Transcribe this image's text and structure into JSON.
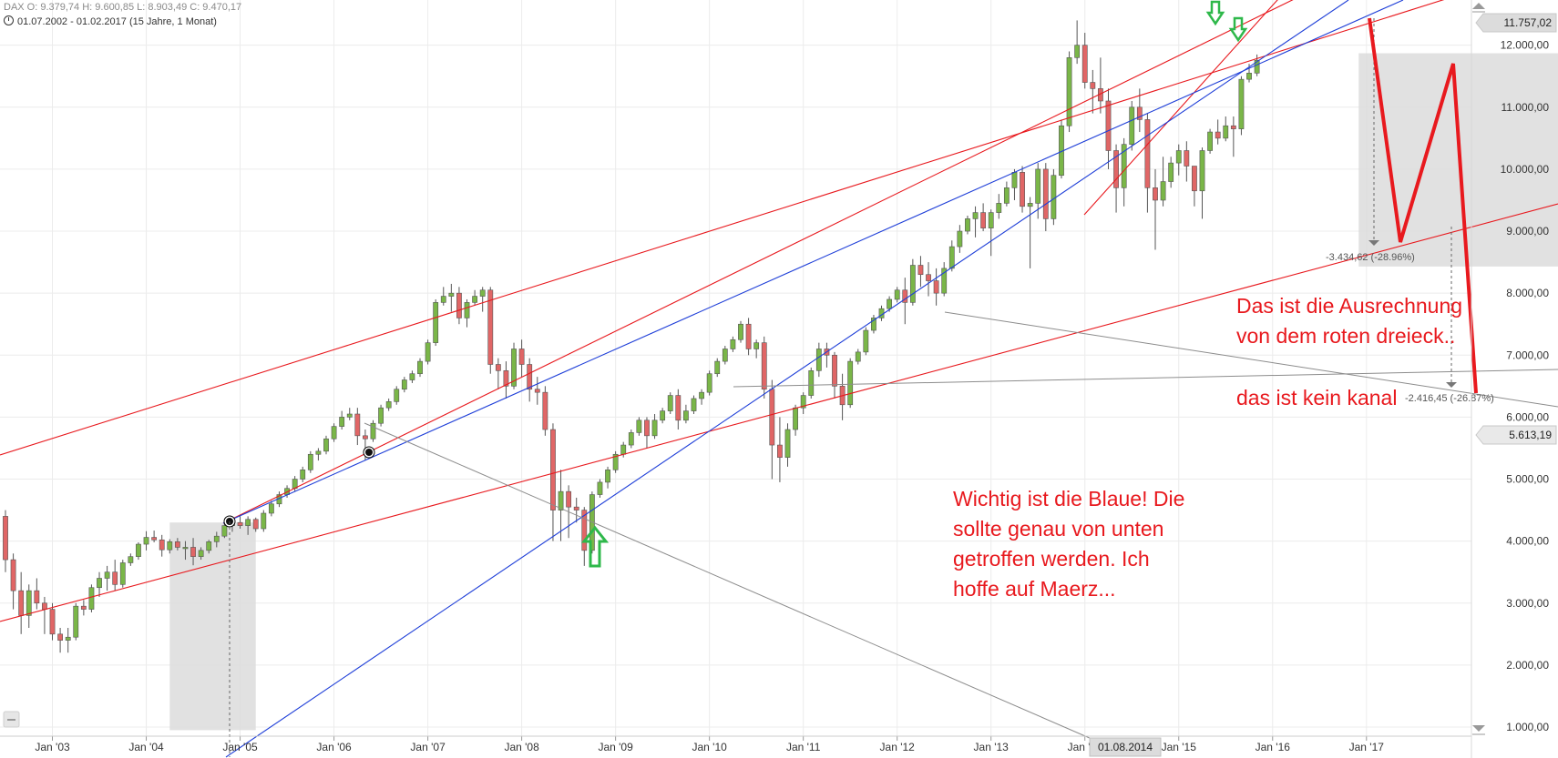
{
  "header": {
    "line1": "DAX  O: 9.379,74  H: 9.600,85  L: 8.903,49  C: 9.470,17",
    "line2": "01.07.2002 - 01.02.2017   (15 Jahre, 1 Monat)"
  },
  "annotations": {
    "blue_note": [
      "Wichtig ist die Blaue! Die",
      "sollte genau von unten",
      "getroffen werden. Ich",
      "hoffe auf Maerz..."
    ],
    "calc_note": [
      "Das ist die Ausrechnung",
      "von dem roten dreieck.."
    ],
    "channel_note": "das ist kein kanal"
  },
  "measurements": [
    {
      "label": "-3.434,62 (-28.96%)"
    },
    {
      "label": "-2.416,45 (-26.87%)"
    }
  ],
  "price_badges": {
    "last": "11.757,02",
    "marker": "5.613,19"
  },
  "date_badge": "01.08.2014",
  "colors": {
    "up": "#7ab648",
    "down": "#e06666",
    "red": "#e8191e",
    "blue": "#1f3fd8",
    "gray": "#8c8c8c",
    "arrow": "#2eb84a"
  },
  "chart_data": {
    "type": "candlestick",
    "title": "DAX",
    "interval": "monthly",
    "ylim": [
      1000,
      12000
    ],
    "y_ticks": [
      "1.000,00",
      "2.000,00",
      "3.000,00",
      "4.000,00",
      "5.000,00",
      "6.000,00",
      "7.000,00",
      "8.000,00",
      "9.000,00",
      "10.000,00",
      "11.000,00",
      "12.000,00"
    ],
    "x_ticks": [
      "Jan '03",
      "Jan '04",
      "Jan '05",
      "Jan '06",
      "Jan '07",
      "Jan '08",
      "Jan '09",
      "Jan '10",
      "Jan '11",
      "Jan '12",
      "Jan '13",
      "Jan '14",
      "Jan '15",
      "Jan '16",
      "Jan '17"
    ],
    "grid": true,
    "series": [
      {
        "name": "DAX",
        "start": "2002-07",
        "ohlc": [
          [
            4400,
            4500,
            3500,
            3700
          ],
          [
            3700,
            3800,
            2900,
            3200
          ],
          [
            3200,
            3500,
            2500,
            2800
          ],
          [
            2800,
            3300,
            2600,
            3200
          ],
          [
            3200,
            3400,
            2900,
            3000
          ],
          [
            3000,
            3100,
            2500,
            2900
          ],
          [
            2900,
            3000,
            2400,
            2500
          ],
          [
            2500,
            2600,
            2200,
            2400
          ],
          [
            2400,
            2600,
            2200,
            2450
          ],
          [
            2450,
            3000,
            2400,
            2950
          ],
          [
            2950,
            3050,
            2800,
            2900
          ],
          [
            2900,
            3300,
            2850,
            3250
          ],
          [
            3250,
            3500,
            3100,
            3400
          ],
          [
            3400,
            3600,
            3200,
            3500
          ],
          [
            3500,
            3700,
            3200,
            3300
          ],
          [
            3300,
            3700,
            3250,
            3650
          ],
          [
            3650,
            3800,
            3600,
            3750
          ],
          [
            3750,
            3980,
            3700,
            3950
          ],
          [
            3950,
            4160,
            3850,
            4060
          ],
          [
            4060,
            4170,
            3980,
            4020
          ],
          [
            4020,
            4100,
            3750,
            3860
          ],
          [
            3860,
            4030,
            3800,
            3990
          ],
          [
            3990,
            4050,
            3850,
            3900
          ],
          [
            3900,
            4000,
            3700,
            3900
          ],
          [
            3900,
            4050,
            3610,
            3750
          ],
          [
            3750,
            3900,
            3700,
            3850
          ],
          [
            3850,
            4020,
            3800,
            3990
          ],
          [
            3990,
            4150,
            3900,
            4080
          ],
          [
            4080,
            4300,
            4050,
            4250
          ],
          [
            4250,
            4350,
            4150,
            4300
          ],
          [
            4300,
            4400,
            4200,
            4250
          ],
          [
            4250,
            4400,
            4100,
            4350
          ],
          [
            4350,
            4380,
            4150,
            4200
          ],
          [
            4200,
            4500,
            4150,
            4450
          ],
          [
            4450,
            4650,
            4400,
            4600
          ],
          [
            4600,
            4800,
            4550,
            4750
          ],
          [
            4750,
            4900,
            4700,
            4850
          ],
          [
            4850,
            5050,
            4800,
            5000
          ],
          [
            5000,
            5200,
            4950,
            5150
          ],
          [
            5150,
            5450,
            5100,
            5400
          ],
          [
            5400,
            5500,
            5300,
            5450
          ],
          [
            5450,
            5700,
            5400,
            5650
          ],
          [
            5650,
            5900,
            5600,
            5850
          ],
          [
            5850,
            6100,
            5800,
            6000
          ],
          [
            6000,
            6150,
            5950,
            6050
          ],
          [
            6050,
            6150,
            5550,
            5700
          ],
          [
            5700,
            5800,
            5300,
            5650
          ],
          [
            5650,
            5950,
            5600,
            5900
          ],
          [
            5900,
            6200,
            5850,
            6150
          ],
          [
            6150,
            6300,
            6100,
            6250
          ],
          [
            6250,
            6500,
            6200,
            6450
          ],
          [
            6450,
            6650,
            6400,
            6600
          ],
          [
            6600,
            6750,
            6550,
            6700
          ],
          [
            6700,
            6950,
            6650,
            6900
          ],
          [
            6900,
            7250,
            6850,
            7200
          ],
          [
            7200,
            7900,
            7150,
            7850
          ],
          [
            7850,
            8100,
            7800,
            7950
          ],
          [
            7950,
            8150,
            7700,
            8000
          ],
          [
            8000,
            8100,
            7500,
            7600
          ],
          [
            7600,
            7900,
            7450,
            7850
          ],
          [
            7850,
            8050,
            7800,
            7950
          ],
          [
            7950,
            8100,
            7700,
            8050
          ],
          [
            8050,
            8100,
            6700,
            6850
          ],
          [
            6850,
            6950,
            6450,
            6750
          ],
          [
            6750,
            6900,
            6300,
            6500
          ],
          [
            6500,
            7200,
            6450,
            7100
          ],
          [
            7100,
            7250,
            6650,
            6850
          ],
          [
            6850,
            6950,
            6250,
            6450
          ],
          [
            6450,
            6650,
            6200,
            6400
          ],
          [
            6400,
            6500,
            5700,
            5800
          ],
          [
            5800,
            5900,
            4000,
            4500
          ],
          [
            4500,
            5150,
            4000,
            4800
          ],
          [
            4800,
            4900,
            4050,
            4550
          ],
          [
            4550,
            4700,
            4300,
            4500
          ],
          [
            4500,
            4550,
            3600,
            3850
          ],
          [
            3850,
            4800,
            3800,
            4750
          ],
          [
            4750,
            5000,
            4700,
            4950
          ],
          [
            4950,
            5200,
            4850,
            5150
          ],
          [
            5150,
            5450,
            5100,
            5400
          ],
          [
            5400,
            5600,
            5350,
            5550
          ],
          [
            5550,
            5800,
            5500,
            5750
          ],
          [
            5750,
            6000,
            5700,
            5950
          ],
          [
            5950,
            6000,
            5500,
            5700
          ],
          [
            5700,
            6050,
            5650,
            5950
          ],
          [
            5950,
            6150,
            5900,
            6100
          ],
          [
            6100,
            6400,
            6050,
            6350
          ],
          [
            6350,
            6450,
            5800,
            5950
          ],
          [
            5950,
            6200,
            5900,
            6100
          ],
          [
            6100,
            6350,
            6050,
            6300
          ],
          [
            6300,
            6450,
            6200,
            6400
          ],
          [
            6400,
            6750,
            6350,
            6700
          ],
          [
            6700,
            6950,
            6650,
            6900
          ],
          [
            6900,
            7150,
            6850,
            7100
          ],
          [
            7100,
            7300,
            7050,
            7250
          ],
          [
            7250,
            7550,
            7200,
            7500
          ],
          [
            7500,
            7600,
            7000,
            7100
          ],
          [
            7100,
            7250,
            6950,
            7200
          ],
          [
            7200,
            7300,
            6300,
            6450
          ],
          [
            6450,
            6600,
            5000,
            5550
          ],
          [
            5550,
            6000,
            4950,
            5350
          ],
          [
            5350,
            5900,
            5200,
            5800
          ],
          [
            5800,
            6200,
            5700,
            6150
          ],
          [
            6150,
            6400,
            6050,
            6350
          ],
          [
            6350,
            6800,
            6300,
            6750
          ],
          [
            6750,
            7200,
            6650,
            7100
          ],
          [
            7100,
            7200,
            6800,
            7000
          ],
          [
            7000,
            7050,
            6300,
            6500
          ],
          [
            6500,
            6700,
            5950,
            6200
          ],
          [
            6200,
            6950,
            6150,
            6900
          ],
          [
            6900,
            7100,
            6850,
            7050
          ],
          [
            7050,
            7450,
            7000,
            7400
          ],
          [
            7400,
            7650,
            7350,
            7600
          ],
          [
            7600,
            7800,
            7550,
            7750
          ],
          [
            7750,
            7950,
            7700,
            7900
          ],
          [
            7900,
            8100,
            7850,
            8050
          ],
          [
            8050,
            8250,
            7500,
            7850
          ],
          [
            7850,
            8550,
            7800,
            8450
          ],
          [
            8450,
            8600,
            8100,
            8300
          ],
          [
            8300,
            8500,
            7950,
            8200
          ],
          [
            8200,
            8400,
            7800,
            8000
          ],
          [
            8000,
            8500,
            7950,
            8400
          ],
          [
            8400,
            8850,
            8350,
            8750
          ],
          [
            8750,
            9100,
            8650,
            9000
          ],
          [
            9000,
            9250,
            8950,
            9200
          ],
          [
            9200,
            9400,
            8900,
            9300
          ],
          [
            9300,
            9450,
            9000,
            9050
          ],
          [
            9050,
            9350,
            8600,
            9300
          ],
          [
            9300,
            9600,
            9200,
            9450
          ],
          [
            9450,
            9800,
            9400,
            9700
          ],
          [
            9700,
            10000,
            9500,
            9950
          ],
          [
            9950,
            10050,
            9300,
            9400
          ],
          [
            9400,
            9550,
            8400,
            9450
          ],
          [
            9450,
            10100,
            9200,
            10000
          ],
          [
            10000,
            10100,
            9000,
            9200
          ],
          [
            9200,
            10000,
            9100,
            9900
          ],
          [
            9900,
            10800,
            9850,
            10700
          ],
          [
            10700,
            11900,
            10600,
            11800
          ],
          [
            11800,
            12400,
            11700,
            12000
          ],
          [
            12000,
            12200,
            11300,
            11400
          ],
          [
            11400,
            11600,
            10900,
            11300
          ],
          [
            11300,
            11800,
            10900,
            11100
          ],
          [
            11100,
            11300,
            10000,
            10300
          ],
          [
            10300,
            10400,
            9300,
            9700
          ],
          [
            9700,
            10500,
            9400,
            10400
          ],
          [
            10400,
            11100,
            10300,
            11000
          ],
          [
            11000,
            11300,
            10600,
            10800
          ],
          [
            10800,
            10900,
            9300,
            9700
          ],
          [
            9700,
            10000,
            8700,
            9500
          ],
          [
            9500,
            10200,
            9400,
            9800
          ],
          [
            9800,
            10200,
            9700,
            10100
          ],
          [
            10100,
            10400,
            9900,
            10300
          ],
          [
            10300,
            10450,
            9800,
            10050
          ],
          [
            10050,
            10050,
            9400,
            9650
          ],
          [
            9650,
            10350,
            9200,
            10300
          ],
          [
            10300,
            10650,
            10250,
            10600
          ],
          [
            10600,
            10800,
            10400,
            10500
          ],
          [
            10500,
            10850,
            10450,
            10700
          ],
          [
            10700,
            10850,
            10200,
            10650
          ],
          [
            10650,
            11500,
            10550,
            11450
          ],
          [
            11450,
            11700,
            11400,
            11550
          ],
          [
            11550,
            11850,
            11500,
            11757
          ]
        ]
      }
    ]
  }
}
